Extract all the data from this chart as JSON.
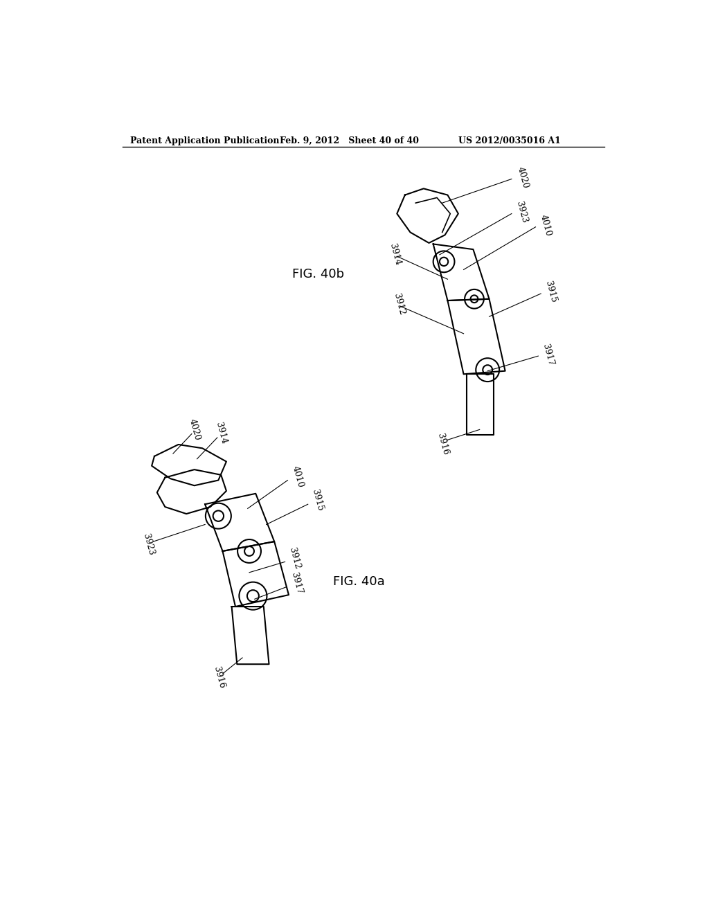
{
  "background_color": "#ffffff",
  "header_left": "Patent Application Publication",
  "header_center": "Feb. 9, 2012   Sheet 40 of 40",
  "header_right": "US 2012/0035016 A1",
  "fig_40b_label": "FIG. 40b",
  "fig_40a_label": "FIG. 40a",
  "line_color": "#000000",
  "line_width": 1.5,
  "annotation_fontsize": 9
}
